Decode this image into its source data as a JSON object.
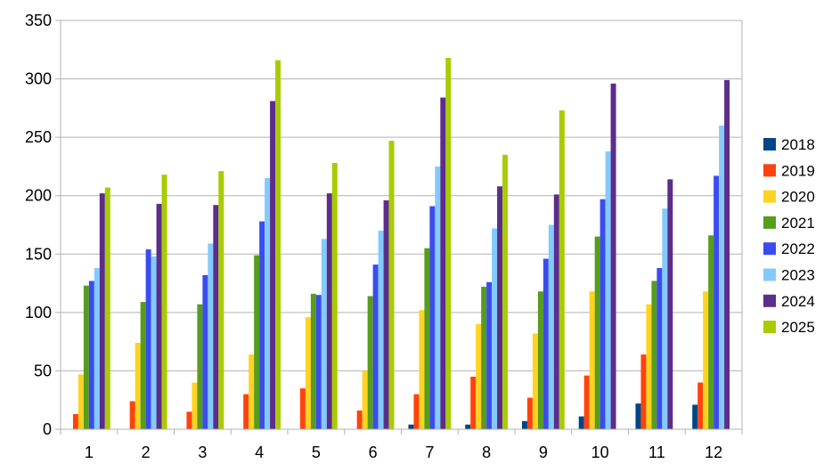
{
  "chart_data": {
    "type": "bar",
    "title": "",
    "xlabel": "",
    "ylabel": "",
    "ylim": [
      0,
      350
    ],
    "yticks": [
      0,
      50,
      100,
      150,
      200,
      250,
      300,
      350
    ],
    "grid": true,
    "legend_position": "right",
    "categories": [
      "1",
      "2",
      "3",
      "4",
      "5",
      "6",
      "7",
      "8",
      "9",
      "10",
      "11",
      "12"
    ],
    "series": [
      {
        "name": "2018",
        "color": "#004586",
        "values": [
          0,
          0,
          0,
          0,
          0,
          0,
          4,
          4,
          7,
          11,
          22,
          21
        ]
      },
      {
        "name": "2019",
        "color": "#ff420e",
        "values": [
          13,
          24,
          15,
          30,
          35,
          16,
          30,
          45,
          27,
          46,
          64,
          40
        ]
      },
      {
        "name": "2020",
        "color": "#ffd320",
        "values": [
          47,
          74,
          40,
          64,
          96,
          50,
          102,
          90,
          82,
          118,
          107,
          118
        ]
      },
      {
        "name": "2021",
        "color": "#579d1c",
        "values": [
          123,
          109,
          107,
          149,
          116,
          114,
          155,
          122,
          118,
          165,
          127,
          166
        ]
      },
      {
        "name": "2022",
        "color": "#3b4cef",
        "values": [
          127,
          154,
          132,
          178,
          115,
          141,
          191,
          126,
          146,
          197,
          138,
          217
        ]
      },
      {
        "name": "2023",
        "color": "#83caff",
        "values": [
          138,
          148,
          159,
          215,
          163,
          170,
          225,
          172,
          175,
          238,
          189,
          260
        ]
      },
      {
        "name": "2024",
        "color": "#5c2d8a",
        "values": [
          202,
          193,
          192,
          281,
          202,
          196,
          284,
          208,
          201,
          296,
          214,
          299
        ]
      },
      {
        "name": "2025",
        "color": "#a8cc00",
        "values": [
          207,
          218,
          221,
          316,
          228,
          247,
          318,
          235,
          273,
          0,
          0,
          0
        ]
      }
    ]
  }
}
